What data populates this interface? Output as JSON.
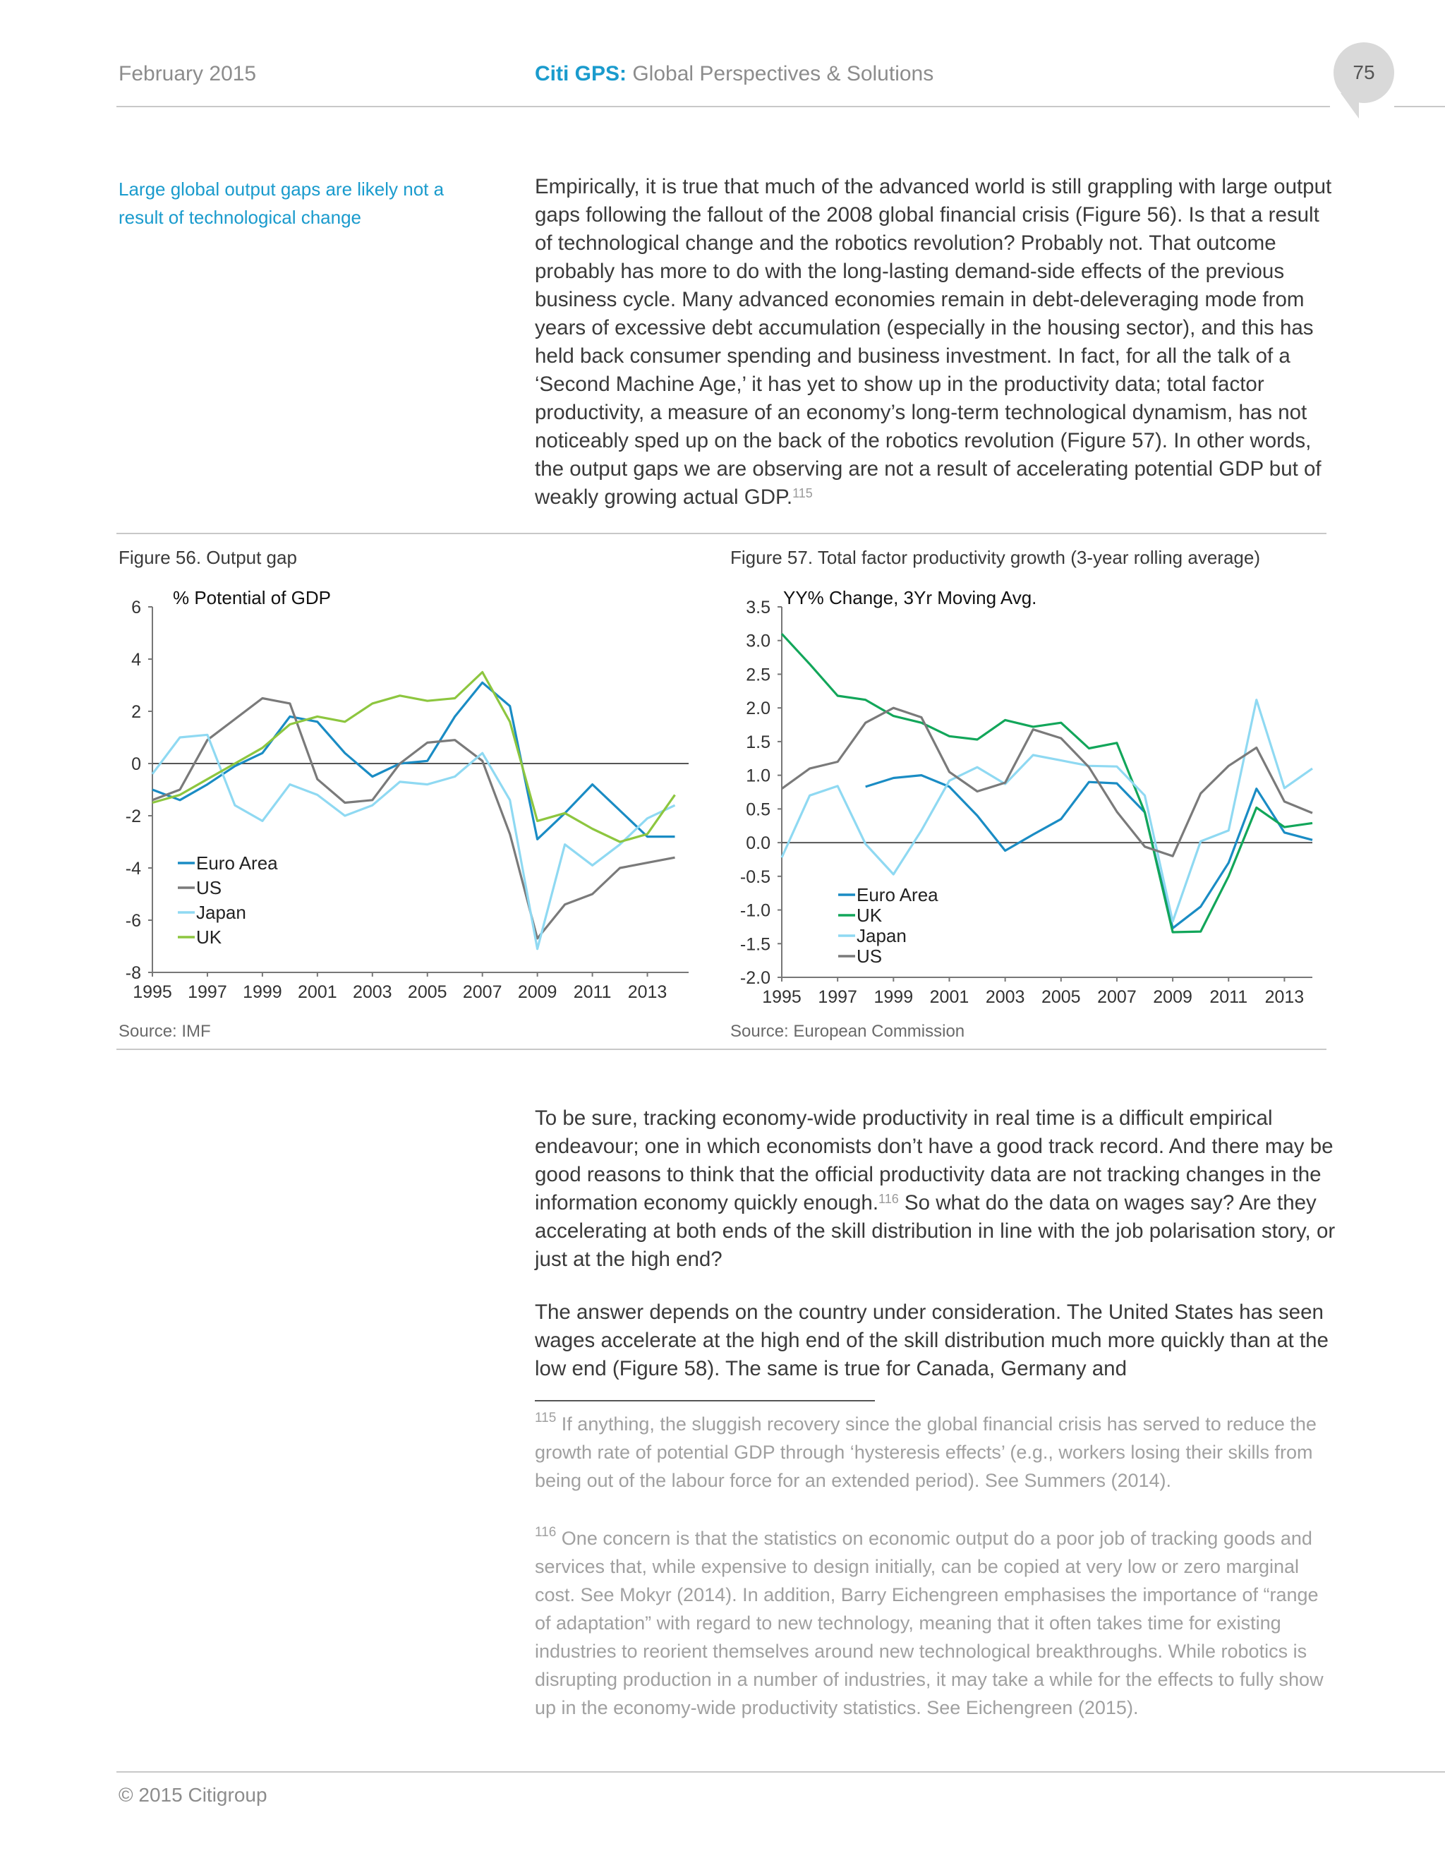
{
  "header": {
    "date": "February 2015",
    "brand": "Citi GPS:",
    "title": " Global Perspectives & Solutions",
    "page_number": "75"
  },
  "sidebar_note": "Large global output gaps are likely not a result of technological change",
  "body": {
    "para1_a": "Empirically, it is true that much of the advanced world is still grappling with large output gaps following the fallout of the 2008 global financial crisis (Figure 56). Is that a result of technological change and the robotics revolution? Probably not. That outcome probably has more to do with the long-lasting demand-side effects of the previous business cycle. Many advanced economies remain in debt-deleveraging mode from years of excessive debt accumulation (especially in the housing sector), and this has held back consumer spending and business investment. In fact, for all the talk of a ‘Second Machine Age,’ it has yet to show up in the productivity data; total factor productivity, a measure of an economy’s long-term technological dynamism, has not noticeably sped up on the back of the robotics revolution (Figure 57). In other words, the output gaps we are observing are not a result of accelerating potential GDP but of weakly growing actual GDP.",
    "para1_ref": "115",
    "para2_a": "To be sure, tracking economy-wide productivity in real time is a difficult empirical endeavour; one in which economists don’t have a good track record. And there may be good reasons to think that the official productivity data are not tracking changes in the information economy quickly enough.",
    "para2_ref": "116",
    "para2_b": " So what do the data on wages say? Are they accelerating at both ends of the skill distribution in line with the job polarisation story, or just at the high end?",
    "para3": "The answer depends on the country under consideration. The United States has seen wages accelerate at the high end of the skill distribution much more quickly than at the low end (Figure 58). The same is true for Canada, Germany and"
  },
  "figures": {
    "fig56_title": "Figure 56. Output gap",
    "fig56_source": "Source: IMF",
    "fig57_title": "Figure 57. Total factor productivity growth (3-year rolling average)",
    "fig57_source": "Source: European Commission"
  },
  "chart_data": [
    {
      "type": "line",
      "title": "Figure 56. Output gap",
      "ylabel": "% Potential of GDP",
      "xlabel": "",
      "ylim": [
        -8,
        6
      ],
      "yticks": [
        6,
        4,
        2,
        0,
        -2,
        -4,
        -6,
        -8
      ],
      "xlim": [
        1995,
        2014.5
      ],
      "xticks": [
        1995,
        1997,
        1999,
        2001,
        2003,
        2005,
        2007,
        2009,
        2011,
        2013
      ],
      "legend_position": "bottom-left",
      "series": [
        {
          "name": "Euro Area",
          "color": "#1a8cc4",
          "x": [
            1995,
            1996,
            1997,
            1998,
            1999,
            2000,
            2001,
            2002,
            2003,
            2004,
            2005,
            2006,
            2007,
            2008,
            2009,
            2010,
            2011,
            2012,
            2013,
            2014
          ],
          "values": [
            -1.0,
            -1.4,
            -0.8,
            -0.1,
            0.4,
            1.8,
            1.6,
            0.4,
            -0.5,
            0.0,
            0.1,
            1.8,
            3.1,
            2.2,
            -2.9,
            -1.9,
            -0.8,
            -1.8,
            -2.8,
            -2.8
          ]
        },
        {
          "name": "US",
          "color": "#7a7a7a",
          "x": [
            1995,
            1996,
            1997,
            1998,
            1999,
            2000,
            2001,
            2002,
            2003,
            2004,
            2005,
            2006,
            2007,
            2008,
            2009,
            2010,
            2011,
            2012,
            2013,
            2014
          ],
          "values": [
            -1.4,
            -1.0,
            0.9,
            1.7,
            2.5,
            2.3,
            -0.6,
            -1.5,
            -1.4,
            0.0,
            0.8,
            0.9,
            0.1,
            -2.7,
            -6.7,
            -5.4,
            -5.0,
            -4.0,
            -3.8,
            -3.6
          ]
        },
        {
          "name": "Japan",
          "color": "#8fd9f2",
          "x": [
            1995,
            1996,
            1997,
            1998,
            1999,
            2000,
            2001,
            2002,
            2003,
            2004,
            2005,
            2006,
            2007,
            2008,
            2009,
            2010,
            2011,
            2012,
            2013,
            2014
          ],
          "values": [
            -0.4,
            1.0,
            1.1,
            -1.6,
            -2.2,
            -0.8,
            -1.2,
            -2.0,
            -1.6,
            -0.7,
            -0.8,
            -0.5,
            0.4,
            -1.4,
            -7.1,
            -3.1,
            -3.9,
            -3.1,
            -2.1,
            -1.6
          ]
        },
        {
          "name": "UK",
          "color": "#8dc63f",
          "x": [
            1995,
            1996,
            1997,
            1998,
            1999,
            2000,
            2001,
            2002,
            2003,
            2004,
            2005,
            2006,
            2007,
            2008,
            2009,
            2010,
            2011,
            2012,
            2013,
            2014
          ],
          "values": [
            -1.5,
            -1.2,
            -0.6,
            0.0,
            0.6,
            1.5,
            1.8,
            1.6,
            2.3,
            2.6,
            2.4,
            2.5,
            3.5,
            1.6,
            -2.2,
            -1.9,
            -2.5,
            -3.0,
            -2.7,
            -1.2
          ]
        }
      ]
    },
    {
      "type": "line",
      "title": "Figure 57. Total factor productivity growth (3-year rolling average)",
      "ylabel": "YY% Change, 3Yr Moving Avg.",
      "xlabel": "",
      "ylim": [
        -2.0,
        3.5
      ],
      "yticks": [
        3.5,
        3.0,
        2.5,
        2.0,
        1.5,
        1.0,
        0.5,
        0.0,
        -0.5,
        -1.0,
        -1.5,
        -2.0
      ],
      "xlim": [
        1995,
        2014
      ],
      "xticks": [
        1995,
        1997,
        1999,
        2001,
        2003,
        2005,
        2007,
        2009,
        2011,
        2013
      ],
      "legend_position": "bottom-left",
      "series": [
        {
          "name": "Euro Area",
          "color": "#1a8cc4",
          "x": [
            1998,
            1999,
            2000,
            2001,
            2002,
            2003,
            2004,
            2005,
            2006,
            2007,
            2008,
            2009,
            2010,
            2011,
            2012,
            2013,
            2014
          ],
          "values": [
            0.83,
            0.96,
            1.0,
            0.83,
            0.4,
            -0.12,
            0.12,
            0.35,
            0.9,
            0.88,
            0.45,
            -1.27,
            -0.95,
            -0.3,
            0.8,
            0.15,
            0.04
          ]
        },
        {
          "name": "UK",
          "color": "#12a65a",
          "x": [
            1995,
            1996,
            1997,
            1998,
            1999,
            2000,
            2001,
            2002,
            2003,
            2004,
            2005,
            2006,
            2007,
            2008,
            2009,
            2010,
            2011,
            2012,
            2013,
            2014
          ],
          "values": [
            3.1,
            2.65,
            2.18,
            2.12,
            1.88,
            1.78,
            1.58,
            1.53,
            1.82,
            1.72,
            1.78,
            1.4,
            1.48,
            0.45,
            -1.33,
            -1.32,
            -0.5,
            0.52,
            0.23,
            0.29
          ]
        },
        {
          "name": "Japan",
          "color": "#8fd9f2",
          "x": [
            1995,
            1996,
            1997,
            1998,
            1999,
            2000,
            2001,
            2002,
            2003,
            2004,
            2005,
            2006,
            2007,
            2008,
            2009,
            2010,
            2011,
            2012,
            2013,
            2014
          ],
          "values": [
            -0.22,
            0.7,
            0.84,
            -0.02,
            -0.47,
            0.18,
            0.92,
            1.12,
            0.87,
            1.3,
            1.22,
            1.14,
            1.13,
            0.7,
            -1.17,
            0.02,
            0.18,
            2.12,
            0.81,
            1.1
          ]
        },
        {
          "name": "US",
          "color": "#7a7a7a",
          "x": [
            1995,
            1996,
            1997,
            1998,
            1999,
            2000,
            2001,
            2002,
            2003,
            2004,
            2005,
            2006,
            2007,
            2008,
            2009,
            2010,
            2011,
            2012,
            2013,
            2014
          ],
          "values": [
            0.8,
            1.1,
            1.2,
            1.78,
            2.0,
            1.86,
            1.05,
            0.76,
            0.89,
            1.68,
            1.55,
            1.12,
            0.46,
            -0.06,
            -0.2,
            0.73,
            1.14,
            1.41,
            0.61,
            0.44
          ]
        }
      ]
    }
  ],
  "footnotes": {
    "fn1_num": "115",
    "fn1_text": " If anything, the sluggish recovery since the global financial crisis has served to reduce the growth rate of potential GDP through ‘hysteresis effects’ (e.g., workers losing their skills from being out of the labour force for an extended period). See Summers (2014).",
    "fn2_num": "116",
    "fn2_text": " One concern is that the statistics on economic output do a poor job of tracking goods and services that, while expensive to design initially, can be copied at very low or zero marginal cost. See Mokyr (2014). In addition, Barry Eichengreen emphasises the importance of “range of adaptation” with regard to new technology, meaning that it often takes time for existing industries to reorient themselves around new technological breakthroughs. While robotics is disrupting production in a number of industries, it may take a while for the effects to fully show up in the economy-wide productivity statistics. See Eichengreen (2015)."
  },
  "footer": {
    "copyright": "© 2015 Citigroup"
  }
}
